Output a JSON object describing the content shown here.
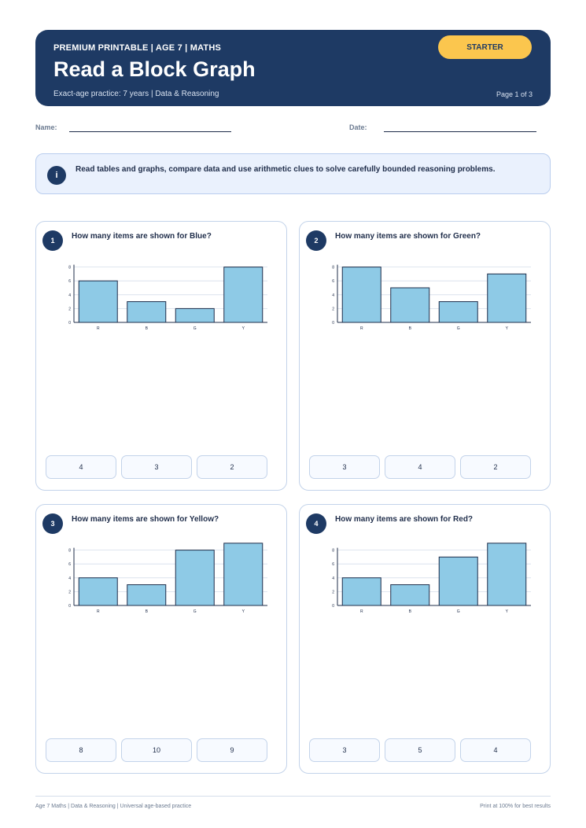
{
  "header": {
    "kicker": "PREMIUM PRINTABLE | AGE 7 | MATHS",
    "title": "Read a Block Graph",
    "subtitle": "Exact-age practice: 7 years | Data & Reasoning",
    "page": "Page 1 of 3",
    "badge": "STARTER"
  },
  "fields": {
    "name_label": "Name:",
    "date_label": "Date:"
  },
  "info": {
    "icon": "i",
    "text": "Read tables and graphs, compare data and use arithmetic clues to solve carefully bounded reasoning problems."
  },
  "colors": {
    "header_bg": "#1e3a64",
    "badge": "#fbc64e",
    "bar_fill": "#8ecae6",
    "bar_stroke": "#1f2d4a"
  },
  "questions": [
    {
      "number": "1",
      "text": "How many items are shown for Blue?",
      "options": [
        "4",
        "3",
        "2"
      ]
    },
    {
      "number": "2",
      "text": "How many items are shown for Green?",
      "options": [
        "3",
        "4",
        "2"
      ]
    },
    {
      "number": "3",
      "text": "How many items are shown for Yellow?",
      "options": [
        "8",
        "10",
        "9"
      ]
    },
    {
      "number": "4",
      "text": "How many items are shown for Red?",
      "options": [
        "3",
        "5",
        "4"
      ]
    }
  ],
  "chart_data": [
    {
      "type": "bar",
      "categories": [
        "R",
        "B",
        "G",
        "Y"
      ],
      "values": [
        6,
        3,
        2,
        8
      ],
      "yticks": [
        "0",
        "2",
        "4",
        "6",
        "8"
      ],
      "ylim": [
        0,
        8
      ],
      "grid": true
    },
    {
      "type": "bar",
      "categories": [
        "R",
        "B",
        "G",
        "Y"
      ],
      "values": [
        8,
        5,
        3,
        7
      ],
      "yticks": [
        "0",
        "2",
        "4",
        "6",
        "8"
      ],
      "ylim": [
        0,
        8
      ],
      "grid": true
    },
    {
      "type": "bar",
      "categories": [
        "R",
        "B",
        "G",
        "Y"
      ],
      "values": [
        4,
        3,
        8,
        9
      ],
      "yticks": [
        "0",
        "2",
        "4",
        "6",
        "8"
      ],
      "ylim": [
        0,
        8
      ],
      "grid": true
    },
    {
      "type": "bar",
      "categories": [
        "R",
        "B",
        "G",
        "Y"
      ],
      "values": [
        4,
        3,
        7,
        9
      ],
      "yticks": [
        "0",
        "2",
        "4",
        "6",
        "8"
      ],
      "ylim": [
        0,
        8
      ],
      "grid": true
    }
  ],
  "footer": {
    "left": "Age 7 Maths | Data & Reasoning | Universal age-based practice",
    "right": "Print at 100% for best results"
  }
}
